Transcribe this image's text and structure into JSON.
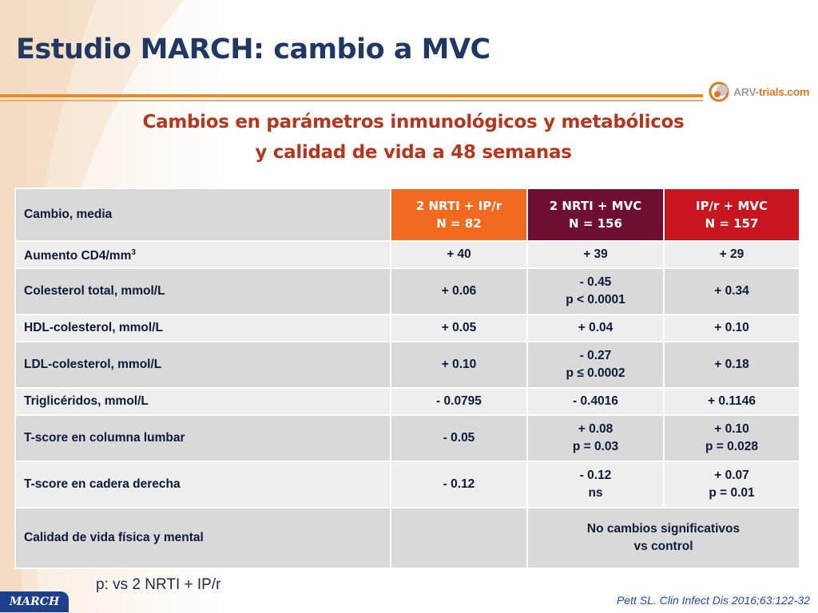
{
  "slide": {
    "title": "Estudio MARCH: cambio a MVC",
    "subtitle_line1": "Cambios en parámetros inmunológicos y metabólicos",
    "subtitle_line2": "y calidad de vida a 48 semanas"
  },
  "logo": {
    "text_main": "ARV-",
    "text_accent": "trials",
    "text_tail": ".com",
    "icon": "arv-trials-logo-icon"
  },
  "colors": {
    "title": "#1f3864",
    "subtitle": "#b5361d",
    "group1": "#f06a1f",
    "group2": "#6e0e30",
    "group3": "#c91520",
    "rule": "#e78b2b"
  },
  "table": {
    "corner": "Cambio, media",
    "headers": [
      {
        "line1": "2 NRTI + IP/r",
        "line2": "N = 82"
      },
      {
        "line1": "2 NRTI + MVC",
        "line2": "N = 156"
      },
      {
        "line1": "IP/r + MVC",
        "line2": "N = 157"
      }
    ],
    "rows": [
      {
        "label": "Aumento CD4/mm",
        "label_sup": "3",
        "c1": [
          "+ 40"
        ],
        "c2": [
          "+ 39"
        ],
        "c3": [
          "+ 29"
        ]
      },
      {
        "label": "Colesterol total, mmol/L",
        "c1": [
          "+ 0.06"
        ],
        "c2": [
          "- 0.45",
          "p < 0.0001"
        ],
        "c3": [
          "+ 0.34"
        ]
      },
      {
        "label": "HDL-colesterol, mmol/L",
        "c1": [
          "+ 0.05"
        ],
        "c2": [
          "+ 0.04"
        ],
        "c3": [
          "+ 0.10"
        ]
      },
      {
        "label": "LDL-colesterol, mmol/L",
        "c1": [
          "+ 0.10"
        ],
        "c2": [
          "- 0.27",
          "p ≤ 0.0002"
        ],
        "c3": [
          "+ 0.18"
        ]
      },
      {
        "label": "Triglicéridos, mmol/L",
        "c1": [
          "- 0.0795"
        ],
        "c2": [
          "- 0.4016"
        ],
        "c3": [
          "+ 0.1146"
        ]
      },
      {
        "label": "T-score en columna lumbar",
        "c1": [
          "- 0.05"
        ],
        "c2": [
          "+ 0.08",
          "p = 0.03"
        ],
        "c3": [
          "+ 0.10",
          "p = 0.028"
        ]
      },
      {
        "label": "T-score en cadera derecha",
        "c1": [
          "- 0.12"
        ],
        "c2": [
          "- 0.12",
          "ns"
        ],
        "c3": [
          "+ 0.07",
          "p = 0.01"
        ]
      }
    ],
    "last_row": {
      "label": "Calidad de vida física y mental",
      "c1": "",
      "merged_line1": "No cambios significativos",
      "merged_line2": "vs control"
    }
  },
  "footnote": "p: vs 2 NRTI + IP/r",
  "citation": "Pett SL. Clin Infect Dis 2016;63:122-32",
  "tab_label": "MARCH"
}
